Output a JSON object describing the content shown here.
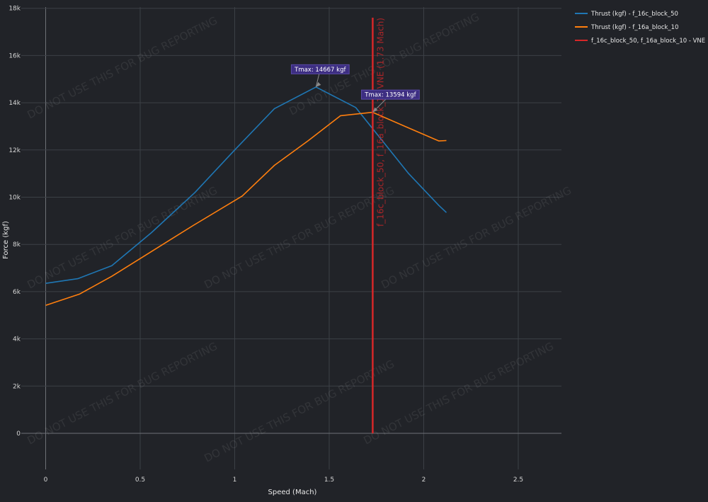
{
  "chart_data": {
    "type": "line",
    "xlabel": "Speed (Mach)",
    "ylabel": "Force (kgf)",
    "xlim": [
      -0.05,
      2.73
    ],
    "ylim": [
      -1800,
      18000
    ],
    "x_ticks": [
      0,
      0.5,
      1,
      1.5,
      2,
      2.5
    ],
    "x_tick_labels": [
      "0",
      "0.5",
      "1",
      "1.5",
      "2",
      "2.5"
    ],
    "y_ticks": [
      0,
      2000,
      4000,
      6000,
      8000,
      10000,
      12000,
      14000,
      16000,
      18000
    ],
    "y_tick_labels": [
      "0",
      "2k",
      "4k",
      "6k",
      "8k",
      "10k",
      "12k",
      "14k",
      "16k",
      "18k"
    ],
    "grid": true,
    "legend_position": "top-right",
    "series": [
      {
        "name": "Thrust (kgf) - f_16c_block_50",
        "color": "#1f77b4",
        "x": [
          0,
          0.17,
          0.35,
          0.56,
          0.79,
          1.0,
          1.21,
          1.43,
          1.64,
          1.77,
          1.92,
          2.08,
          2.12
        ],
        "y": [
          6350,
          6550,
          7100,
          8500,
          10200,
          12000,
          13750,
          14667,
          13800,
          12500,
          11000,
          9650,
          9350
        ]
      },
      {
        "name": "Thrust (kgf) - f_16a_block_10",
        "color": "#ff7f0e",
        "x": [
          0,
          0.18,
          0.35,
          0.53,
          0.78,
          1.04,
          1.21,
          1.39,
          1.56,
          1.73,
          1.9,
          2.08,
          2.12
        ],
        "y": [
          5420,
          5900,
          6650,
          7550,
          8800,
          10050,
          11350,
          12400,
          13450,
          13594,
          13000,
          12380,
          12400
        ]
      }
    ],
    "vline": {
      "name": "f_16c_block_50, f_16a_block_10 - VNE",
      "x": 1.73,
      "y_top": 17600,
      "color": "#d62728",
      "label": "f_16c_block_50, f_16a_block_10 VNE (1.73 Mach)"
    },
    "annotations": [
      {
        "text": "Tmax: 14667 kgf",
        "x": 1.43,
        "y": 14667
      },
      {
        "text": "Tmax: 13594 kgf",
        "x": 1.73,
        "y": 13594
      }
    ],
    "watermark": "DO NOT USE THIS FOR BUG REPORTING"
  }
}
